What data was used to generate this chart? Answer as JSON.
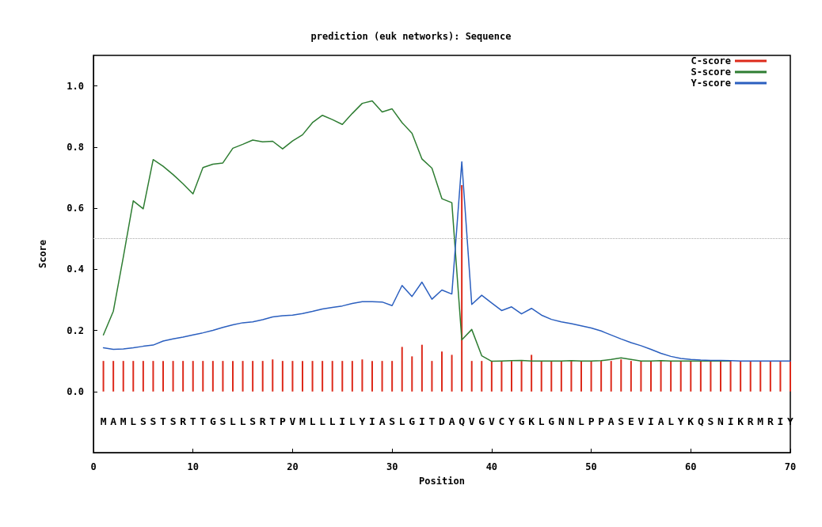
{
  "chart_data": {
    "type": "line",
    "title": "prediction (euk networks): Sequence",
    "xlabel": "Position",
    "ylabel": "Score",
    "x": [
      1,
      2,
      3,
      4,
      5,
      6,
      7,
      8,
      9,
      10,
      11,
      12,
      13,
      14,
      15,
      16,
      17,
      18,
      19,
      20,
      21,
      22,
      23,
      24,
      25,
      26,
      27,
      28,
      29,
      30,
      31,
      32,
      33,
      34,
      35,
      36,
      37,
      38,
      39,
      40,
      41,
      42,
      43,
      44,
      45,
      46,
      47,
      48,
      49,
      50,
      51,
      52,
      53,
      54,
      55,
      56,
      57,
      58,
      59,
      60,
      61,
      62,
      63,
      64,
      65,
      66,
      67,
      68,
      69,
      70
    ],
    "series": [
      {
        "name": "C-score",
        "type": "bar",
        "color": "#dd2a1b",
        "values": [
          0.1,
          0.1,
          0.1,
          0.1,
          0.1,
          0.1,
          0.1,
          0.1,
          0.1,
          0.1,
          0.1,
          0.1,
          0.1,
          0.1,
          0.1,
          0.1,
          0.1,
          0.105,
          0.1,
          0.1,
          0.1,
          0.1,
          0.1,
          0.1,
          0.1,
          0.1,
          0.105,
          0.1,
          0.1,
          0.1,
          0.146,
          0.115,
          0.153,
          0.1,
          0.131,
          0.12,
          0.675,
          0.1,
          0.1,
          0.1,
          0.1,
          0.1,
          0.1,
          0.12,
          0.1,
          0.1,
          0.1,
          0.1,
          0.1,
          0.1,
          0.1,
          0.1,
          0.105,
          0.1,
          0.1,
          0.1,
          0.1,
          0.1,
          0.1,
          0.1,
          0.1,
          0.1,
          0.1,
          0.1,
          0.1,
          0.1,
          0.1,
          0.1,
          0.1,
          0.1
        ]
      },
      {
        "name": "S-score",
        "color": "#2e7d32",
        "values": [
          0.185,
          0.263,
          0.44,
          0.624,
          0.598,
          0.759,
          0.737,
          0.71,
          0.68,
          0.647,
          0.733,
          0.744,
          0.748,
          0.796,
          0.809,
          0.823,
          0.817,
          0.819,
          0.794,
          0.82,
          0.84,
          0.88,
          0.904,
          0.89,
          0.874,
          0.91,
          0.943,
          0.951,
          0.915,
          0.925,
          0.88,
          0.845,
          0.761,
          0.731,
          0.631,
          0.618,
          0.169,
          0.203,
          0.117,
          0.099,
          0.1,
          0.101,
          0.102,
          0.1,
          0.1,
          0.1,
          0.1,
          0.101,
          0.1,
          0.1,
          0.101,
          0.105,
          0.11,
          0.105,
          0.1,
          0.1,
          0.101,
          0.1,
          0.1,
          0.1,
          0.1,
          0.1,
          0.1,
          0.1,
          null,
          null,
          null,
          null,
          null,
          null
        ]
      },
      {
        "name": "Y-score",
        "color": "#2b5fbf",
        "values": [
          0.143,
          0.138,
          0.139,
          0.143,
          0.148,
          0.152,
          0.165,
          0.172,
          0.178,
          0.185,
          0.192,
          0.2,
          0.21,
          0.218,
          0.225,
          0.228,
          0.235,
          0.244,
          0.248,
          0.25,
          0.255,
          0.262,
          0.27,
          0.275,
          0.28,
          0.288,
          0.294,
          0.294,
          0.293,
          0.281,
          0.347,
          0.311,
          0.358,
          0.302,
          0.332,
          0.319,
          0.752,
          0.285,
          0.315,
          0.29,
          0.265,
          0.277,
          0.254,
          0.272,
          0.25,
          0.236,
          0.228,
          0.222,
          0.215,
          0.208,
          0.198,
          0.185,
          0.172,
          0.16,
          0.15,
          0.138,
          0.125,
          0.115,
          0.108,
          0.105,
          0.103,
          0.102,
          0.102,
          0.101,
          0.1,
          0.1,
          0.1,
          0.1,
          0.1,
          0.1
        ]
      }
    ],
    "annotations": [
      "MAMLSSTSRTTGSLLSRTPVMLLLILYIASLGITDAQVGVCYGKLGNNLPPASEVIALYKQSNIKRMRIY"
    ],
    "ref_lines": [
      {
        "axis": "y",
        "value": 0.5,
        "color": "#aaaaaa",
        "line_style": "dotted"
      }
    ],
    "xlim": [
      0,
      70
    ],
    "xticks": [
      0,
      10,
      20,
      30,
      40,
      50,
      60,
      70
    ],
    "ylim": [
      -0.2,
      1.1
    ],
    "yticks": [
      {
        "value": 0,
        "label": "0.0"
      },
      {
        "value": 0.2,
        "label": "0.2"
      },
      {
        "value": 0.4,
        "label": "0.4"
      },
      {
        "value": 0.6,
        "label": "0.6"
      },
      {
        "value": 0.8,
        "label": "0.8"
      },
      {
        "value": 1,
        "label": "1.0"
      }
    ],
    "legend": "top right",
    "marker": "none",
    "line_style": "solid",
    "grid": false
  }
}
